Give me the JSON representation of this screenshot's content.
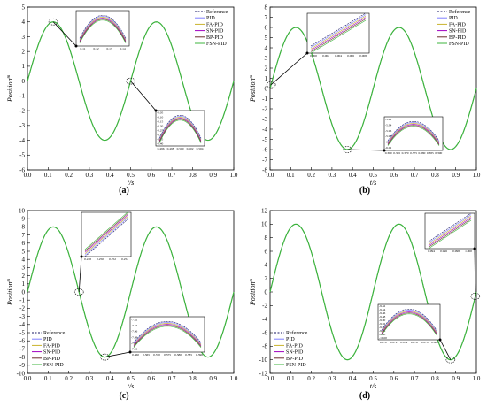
{
  "figure": {
    "xlabel": "t/s",
    "ylabel": "Position",
    "ylabel_unit": "m",
    "legend_entries": [
      "Reference",
      "PID",
      "FA-PID",
      "SN-PID",
      "BP-PID",
      "FSN-PID"
    ],
    "colors": {
      "Reference": "#1a1a66",
      "PID": "#7f7fff",
      "FA-PID": "#c8b22a",
      "SN-PID": "#a000c0",
      "BP-PID": "#6b2e2e",
      "FSN-PID": "#3cb43c"
    }
  },
  "chart_data": [
    {
      "panel": "(a)",
      "type": "line",
      "x": [
        0,
        0.05,
        0.1,
        0.125,
        0.15,
        0.2,
        0.25,
        0.3,
        0.35,
        0.375,
        0.4,
        0.45,
        0.5,
        0.55,
        0.6,
        0.625,
        0.65,
        0.7,
        0.75,
        0.8,
        0.85,
        0.875,
        0.9,
        0.95,
        1.0
      ],
      "series": [
        {
          "name": "Reference",
          "values": [
            0,
            2.83,
            3.8,
            4.0,
            3.8,
            2.35,
            0,
            -2.35,
            -3.8,
            -4.0,
            -3.8,
            -2.35,
            0,
            2.35,
            3.8,
            4.0,
            3.8,
            2.35,
            0,
            -2.35,
            -3.8,
            -4.0,
            -3.8,
            -2.35,
            0
          ]
        },
        {
          "name": "FSN-PID",
          "values": [
            0,
            2.83,
            3.8,
            4.0,
            3.8,
            2.35,
            0,
            -2.35,
            -3.8,
            -4.0,
            -3.8,
            -2.35,
            0,
            2.35,
            3.8,
            4.0,
            3.8,
            2.35,
            0,
            -2.35,
            -3.8,
            -4.0,
            -3.8,
            -2.35,
            0
          ]
        }
      ],
      "xlim": [
        0.0,
        1.0
      ],
      "ylim": [
        -6,
        5
      ],
      "xticks": [
        "0.0",
        "0.1",
        "0.2",
        "0.3",
        "0.4",
        "0.5",
        "0.6",
        "0.7",
        "0.8",
        "0.9",
        "1.0"
      ],
      "yticks": [
        "5",
        "4",
        "3",
        "2",
        "1",
        "0",
        "-1",
        "-2",
        "-3",
        "-4",
        "-5",
        "-6"
      ],
      "legend": "top-right",
      "insets": [
        {
          "xticks": [
            "0.11",
            "0.12",
            "0.13",
            "0.14"
          ],
          "yticks": []
        },
        {
          "xticks": [
            "0.496",
            "0.498",
            "0.500",
            "0.502",
            "0.504"
          ],
          "yticks": [
            "-0.05",
            "-0.10",
            "-0.15",
            "-0.20",
            "-0.25",
            "-0.30",
            "-0.35",
            "-0.40"
          ]
        }
      ]
    },
    {
      "panel": "(b)",
      "type": "line",
      "xlim": [
        0.0,
        1.0
      ],
      "ylim": [
        -8,
        8
      ],
      "xticks": [
        "0.0",
        "0.1",
        "0.2",
        "0.3",
        "0.4",
        "0.5",
        "0.6",
        "0.7",
        "0.8",
        "0.9",
        "1.0"
      ],
      "yticks": [
        "8",
        "7",
        "6",
        "5",
        "4",
        "3",
        "2",
        "1",
        "0",
        "-1",
        "-2",
        "-3",
        "-4",
        "-5",
        "-6",
        "-7",
        "-8"
      ],
      "legend": "top-right",
      "insets": [
        {
          "xticks": [
            "0.000",
            "0.002",
            "0.004",
            "0.006",
            "0.008"
          ],
          "yticks": []
        },
        {
          "xticks": [
            "0.360",
            "0.365",
            "0.370",
            "0.375",
            "0.380",
            "0.385",
            "0.390"
          ],
          "yticks": [
            "-5.92",
            "-5.94",
            "-5.96",
            "-5.98",
            "-6.00",
            "-6.02"
          ]
        }
      ]
    },
    {
      "panel": "(c)",
      "type": "line",
      "xlim": [
        0.0,
        1.0
      ],
      "ylim": [
        -10,
        10
      ],
      "xticks": [
        "0.0",
        "0.1",
        "0.2",
        "0.3",
        "0.4",
        "0.5",
        "0.6",
        "0.7",
        "0.8",
        "0.9",
        "1.0"
      ],
      "yticks": [
        "10",
        "9",
        "8",
        "7",
        "6",
        "5",
        "4",
        "3",
        "2",
        "1",
        "0",
        "-1",
        "-2",
        "-3",
        "-4",
        "-5",
        "-6",
        "-7",
        "-8",
        "-9",
        "-10"
      ],
      "legend": "bottom-left",
      "insets": [
        {
          "xticks": [
            "0.248",
            "0.250",
            "0.252",
            "0.254"
          ],
          "yticks": []
        },
        {
          "xticks": [
            "0.360",
            "0.365",
            "0.370",
            "0.375",
            "0.380",
            "0.385",
            "0.390"
          ],
          "yticks": [
            "-7.82",
            "-7.84",
            "-7.86",
            "-7.88",
            "-7.90",
            "-7.92"
          ]
        }
      ]
    },
    {
      "panel": "(d)",
      "type": "line",
      "xlim": [
        0.0,
        1.0
      ],
      "ylim": [
        -12,
        12
      ],
      "xticks": [
        "0.0",
        "0.1",
        "0.2",
        "0.3",
        "0.4",
        "0.5",
        "0.6",
        "0.7",
        "0.8",
        "0.9",
        "1.0"
      ],
      "yticks": [
        "12",
        "10",
        "8",
        "6",
        "4",
        "2",
        "0",
        "-2",
        "-4",
        "-6",
        "-8",
        "-10",
        "-12"
      ],
      "legend": "bottom-left",
      "insets": [
        {
          "xticks": [
            "0.994",
            "0.996",
            "0.998",
            "1.000"
          ],
          "yticks": []
        },
        {
          "xticks": [
            "0.870",
            "0.872",
            "0.874",
            "0.876",
            "0.878",
            "0.880"
          ],
          "yticks": [
            "-9.82",
            "-9.84",
            "-9.86",
            "-9.88",
            "-9.90",
            "-9.92",
            "-9.94",
            "-9.96",
            "-9.98",
            "-10.00"
          ]
        }
      ]
    }
  ]
}
